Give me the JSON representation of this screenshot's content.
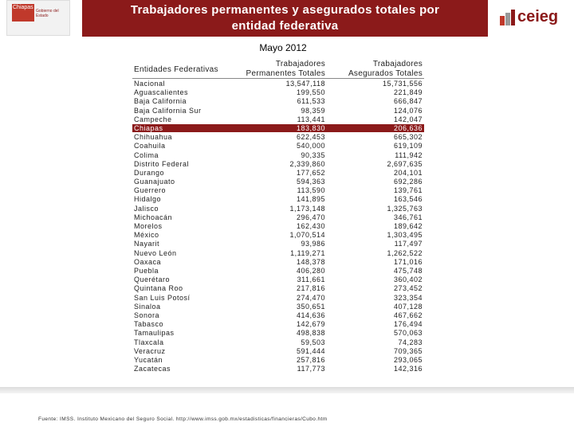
{
  "header": {
    "title": "Trabajadores permanentes y asegurados totales por entidad federativa",
    "subtitle": "Mayo 2012",
    "logo_left": [
      "Chiapas",
      "Gobierno del Estado"
    ],
    "logo_right": "ceieg"
  },
  "table": {
    "headers": [
      "Entidades Federativas",
      "Trabajadores Permanentes Totales",
      "Trabajadores Asegurados Totales"
    ],
    "highlight": "Chiapas",
    "rows": [
      [
        "Nacional",
        "13,547,118",
        "15,731,556"
      ],
      [
        "Aguascalientes",
        "199,550",
        "221,849"
      ],
      [
        "Baja California",
        "611,533",
        "666,847"
      ],
      [
        "Baja California Sur",
        "98,359",
        "124,076"
      ],
      [
        "Campeche",
        "113,441",
        "142,047"
      ],
      [
        "Chiapas",
        "183,830",
        "206,636"
      ],
      [
        "Chihuahua",
        "622,453",
        "665,302"
      ],
      [
        "Coahuila",
        "540,000",
        "619,109"
      ],
      [
        "Colima",
        "90,335",
        "111,942"
      ],
      [
        "Distrito Federal",
        "2,339,860",
        "2,697,635"
      ],
      [
        "Durango",
        "177,652",
        "204,101"
      ],
      [
        "Guanajuato",
        "594,363",
        "692,286"
      ],
      [
        "Guerrero",
        "113,590",
        "139,761"
      ],
      [
        "Hidalgo",
        "141,895",
        "163,546"
      ],
      [
        "Jalisco",
        "1,173,148",
        "1,325,763"
      ],
      [
        "Michoacán",
        "296,470",
        "346,761"
      ],
      [
        "Morelos",
        "162,430",
        "189,642"
      ],
      [
        "México",
        "1,070,514",
        "1,303,495"
      ],
      [
        "Nayarit",
        "93,986",
        "117,497"
      ],
      [
        "Nuevo León",
        "1,119,271",
        "1,262,522"
      ],
      [
        "Oaxaca",
        "148,378",
        "171,016"
      ],
      [
        "Puebla",
        "406,280",
        "475,748"
      ],
      [
        "Querétaro",
        "311,661",
        "360,402"
      ],
      [
        "Quintana Roo",
        "217,816",
        "273,452"
      ],
      [
        "San Luis Potosí",
        "274,470",
        "323,354"
      ],
      [
        "Sinaloa",
        "350,651",
        "407,128"
      ],
      [
        "Sonora",
        "414,636",
        "467,662"
      ],
      [
        "Tabasco",
        "142,679",
        "176,494"
      ],
      [
        "Tamaulipas",
        "498,838",
        "570,063"
      ],
      [
        "Tlaxcala",
        "59,503",
        "74,283"
      ],
      [
        "Veracruz",
        "591,444",
        "709,365"
      ],
      [
        "Yucatán",
        "257,816",
        "293,065"
      ],
      [
        "Zacatecas",
        "117,773",
        "142,316"
      ]
    ]
  },
  "footer": {
    "source": "Fuente: IMSS. Instituto Mexicano del Seguro Social. http://www.imss.gob.mx/estadisticas/financieras/Cubo.htm"
  }
}
